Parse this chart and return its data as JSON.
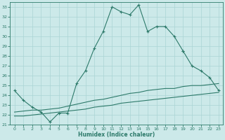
{
  "xlabel": "Humidex (Indice chaleur)",
  "bg_color": "#cce9e9",
  "grid_color": "#aad4d4",
  "line_color": "#2d7a6a",
  "xlim": [
    -0.5,
    23.5
  ],
  "ylim": [
    21,
    33.5
  ],
  "yticks": [
    21,
    22,
    23,
    24,
    25,
    26,
    27,
    28,
    29,
    30,
    31,
    32,
    33
  ],
  "xticks": [
    0,
    1,
    2,
    3,
    4,
    5,
    6,
    7,
    8,
    9,
    10,
    11,
    12,
    13,
    14,
    15,
    16,
    17,
    18,
    19,
    20,
    21,
    22,
    23
  ],
  "line1_x": [
    0,
    1,
    2,
    3,
    4,
    5,
    6,
    7,
    8,
    9,
    10,
    11,
    12,
    13,
    14,
    15,
    16,
    17,
    18,
    19
  ],
  "line1_y": [
    24.5,
    23.5,
    22.8,
    22.3,
    21.3,
    22.2,
    22.2,
    25.2,
    26.5,
    28.8,
    30.5,
    33.0,
    32.5,
    32.2,
    33.2,
    30.5,
    31.0,
    31.0,
    30.0,
    28.5
  ],
  "line2_x": [
    19,
    20,
    21,
    22,
    23
  ],
  "line2_y": [
    28.5,
    27.0,
    26.5,
    25.8,
    24.5
  ],
  "line3_x": [
    0,
    1,
    2,
    3,
    4,
    5,
    6,
    7,
    8,
    9,
    10,
    11,
    12,
    13,
    14,
    15,
    16,
    17,
    18,
    19,
    20,
    21,
    22,
    23
  ],
  "line3_y": [
    22.3,
    22.4,
    22.5,
    22.5,
    22.6,
    22.7,
    22.9,
    23.1,
    23.3,
    23.5,
    23.6,
    23.8,
    24.0,
    24.2,
    24.3,
    24.5,
    24.6,
    24.7,
    24.7,
    24.9,
    25.0,
    25.0,
    25.1,
    25.2
  ],
  "line4_x": [
    0,
    1,
    2,
    3,
    4,
    5,
    6,
    7,
    8,
    9,
    10,
    11,
    12,
    13,
    14,
    15,
    16,
    17,
    18,
    19,
    20,
    21,
    22,
    23
  ],
  "line4_y": [
    21.9,
    21.9,
    22.0,
    22.1,
    22.2,
    22.3,
    22.4,
    22.5,
    22.6,
    22.8,
    22.9,
    23.0,
    23.2,
    23.3,
    23.4,
    23.5,
    23.6,
    23.7,
    23.8,
    23.9,
    24.0,
    24.1,
    24.2,
    24.3
  ]
}
